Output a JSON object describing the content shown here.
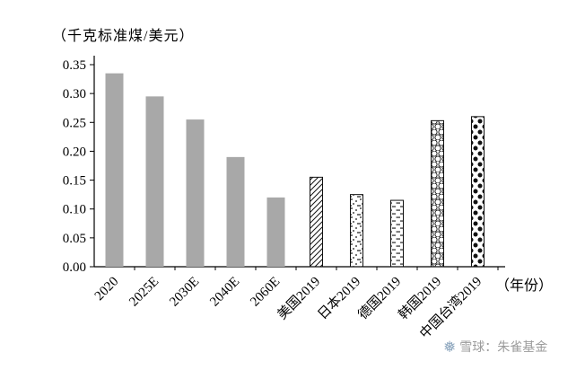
{
  "chart_data": {
    "type": "bar",
    "title": "",
    "unit_label": "（千克标准煤/美元）",
    "xlabel": "（年份）",
    "ylabel": "",
    "ylim": [
      0,
      0.35
    ],
    "ytick_step": 0.05,
    "yticks": [
      "0.00",
      "0.05",
      "0.10",
      "0.15",
      "0.20",
      "0.25",
      "0.30",
      "0.35"
    ],
    "categories": [
      "2020",
      "2025E",
      "2030E",
      "2040E",
      "2060E",
      "美国2019",
      "日本2019",
      "德国2019",
      "韩国2019",
      "中国台湾2019"
    ],
    "values": [
      0.335,
      0.295,
      0.255,
      0.19,
      0.12,
      0.155,
      0.125,
      0.115,
      0.253,
      0.26
    ],
    "bar_styles": [
      "solid",
      "solid",
      "solid",
      "solid",
      "solid",
      "hatch-diagonal",
      "stipple-dots",
      "horizontal-dashes",
      "honeycomb",
      "polka-dots"
    ],
    "colors": {
      "solid_bar": "#a8a8a8",
      "pattern_stroke": "#111111",
      "axis": "#000000"
    },
    "grid": false,
    "legend": "none"
  },
  "watermark": {
    "logo_icon": "snowflake-icon",
    "logo_glyph": "❅",
    "text": "雪球：朱雀基金",
    "text_color": "#9b9b9b",
    "logo_color": "#8fa8bf"
  }
}
